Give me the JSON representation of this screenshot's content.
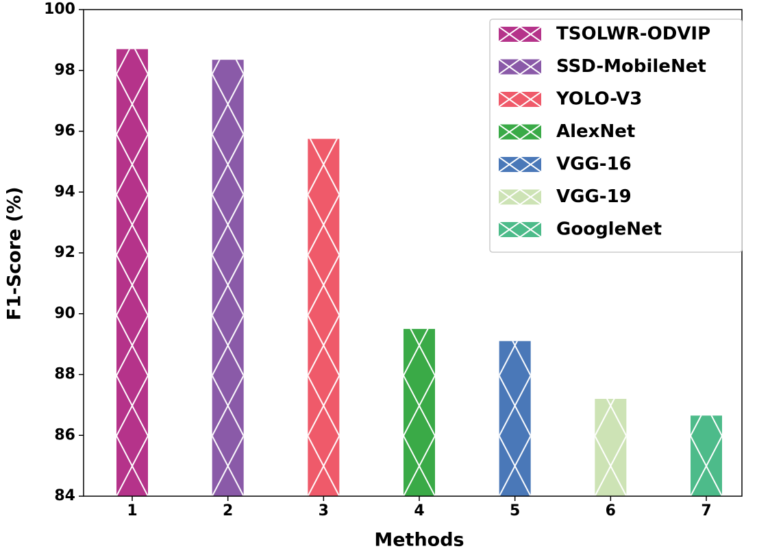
{
  "chart_data": {
    "type": "bar",
    "categories": [
      "1",
      "2",
      "3",
      "4",
      "5",
      "6",
      "7"
    ],
    "series": [
      {
        "name": "TSOLWR-ODVIP",
        "color": "#b5338a",
        "values": [
          98.7,
          null,
          null,
          null,
          null,
          null,
          null
        ]
      },
      {
        "name": "SSD-MobileNet",
        "color": "#8a5aa8",
        "values": [
          null,
          98.35,
          null,
          null,
          null,
          null,
          null
        ]
      },
      {
        "name": "YOLO-V3",
        "color": "#ef5a6a",
        "values": [
          null,
          null,
          95.75,
          null,
          null,
          null,
          null
        ]
      },
      {
        "name": "AlexNet",
        "color": "#3aaa47",
        "values": [
          null,
          null,
          null,
          89.5,
          null,
          null,
          null
        ]
      },
      {
        "name": "VGG-16",
        "color": "#4a78b8",
        "values": [
          null,
          null,
          null,
          null,
          89.1,
          null,
          null
        ]
      },
      {
        "name": "VGG-19",
        "color": "#cde3b5",
        "values": [
          null,
          null,
          null,
          null,
          null,
          87.2,
          null
        ]
      },
      {
        "name": "GoogleNet",
        "color": "#4dbb8a",
        "values": [
          null,
          null,
          null,
          null,
          null,
          null,
          86.65
        ]
      }
    ],
    "xlabel": "Methods",
    "ylabel": "F1-Score (%)",
    "ylim": [
      84,
      100
    ],
    "yticks": [
      84,
      86,
      88,
      90,
      92,
      94,
      96,
      98,
      100
    ],
    "legend": "upper right",
    "grid": false,
    "hatch": "x"
  }
}
